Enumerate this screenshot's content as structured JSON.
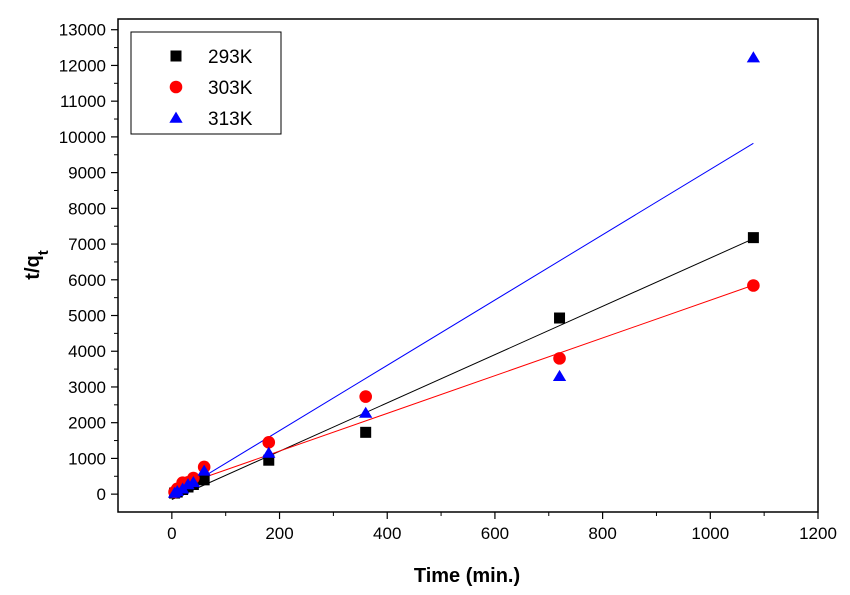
{
  "chart_data": {
    "type": "scatter",
    "title": "",
    "xlabel": "Time (min.)",
    "ylabel": {
      "main": "t/q",
      "sub": "t"
    },
    "xlim": [
      -100,
      1200
    ],
    "ylim": [
      -500,
      13300
    ],
    "xticks": [
      0,
      200,
      400,
      600,
      800,
      1000,
      1200
    ],
    "yticks": [
      0,
      1000,
      2000,
      3000,
      4000,
      5000,
      6000,
      7000,
      8000,
      9000,
      10000,
      11000,
      12000,
      13000
    ],
    "grid": false,
    "legend": "top-left",
    "series": [
      {
        "name": "293K",
        "marker": "square",
        "color": "#000000",
        "x": [
          5,
          10,
          20,
          30,
          40,
          60,
          180,
          360,
          720,
          1080
        ],
        "y": [
          30,
          60,
          130,
          200,
          270,
          400,
          950,
          1730,
          4930,
          7180
        ],
        "fit": {
          "x": [
            0,
            1080
          ],
          "y": [
            -150,
            7150
          ],
          "color": "#000000"
        }
      },
      {
        "name": "303K",
        "marker": "circle",
        "color": "#ff0000",
        "x": [
          5,
          10,
          20,
          30,
          40,
          60,
          180,
          360,
          720,
          1080
        ],
        "y": [
          60,
          150,
          320,
          330,
          450,
          760,
          1450,
          2730,
          3800,
          5840
        ],
        "fit": {
          "x": [
            0,
            1080
          ],
          "y": [
            150,
            5850
          ],
          "color": "#ff0000"
        }
      },
      {
        "name": "313K",
        "marker": "triangle",
        "color": "#0000ff",
        "x": [
          5,
          10,
          20,
          30,
          40,
          60,
          180,
          360,
          720,
          1080
        ],
        "y": [
          30,
          80,
          150,
          270,
          330,
          650,
          1150,
          2270,
          3300,
          12220
        ],
        "fit": {
          "x": [
            0,
            1080
          ],
          "y": [
            -50,
            9820
          ],
          "color": "#0000ff"
        }
      }
    ]
  }
}
